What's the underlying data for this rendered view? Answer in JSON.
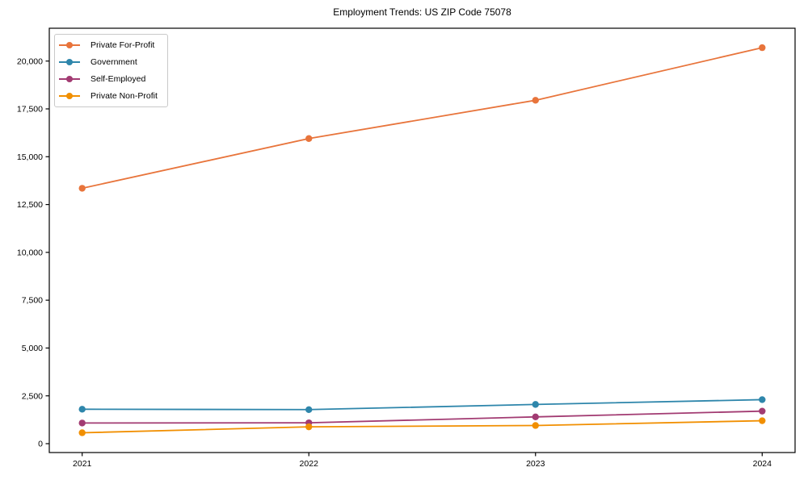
{
  "figure": {
    "title": "Employment Trends: US ZIP Code 75078"
  },
  "chart_data": {
    "type": "line",
    "title": "Employment Trends: US ZIP Code 75078",
    "xlabel": "",
    "ylabel": "",
    "grid": false,
    "legend_position": "upper left",
    "marker": "circle",
    "x_tick_labels": [
      "2021",
      "2022",
      "2023",
      "2024"
    ],
    "x": [
      2021,
      2022,
      2023,
      2024
    ],
    "y_ticks": [
      0,
      2500,
      5000,
      7500,
      10000,
      12500,
      15000,
      17500,
      20000
    ],
    "y_tick_labels": [
      "0",
      "2,500",
      "5,000",
      "7,500",
      "10,000",
      "12,500",
      "15,000",
      "17,500",
      "20,000"
    ],
    "ylim": [
      0,
      21700
    ],
    "series": [
      {
        "name": "Private For-Profit",
        "color": "#E8743B",
        "values": [
          13350,
          15950,
          17950,
          20700
        ]
      },
      {
        "name": "Government",
        "color": "#2E86AB",
        "values": [
          1800,
          1780,
          2050,
          2300
        ]
      },
      {
        "name": "Self-Employed",
        "color": "#A23B72",
        "values": [
          1080,
          1090,
          1400,
          1700
        ]
      },
      {
        "name": "Private Non-Profit",
        "color": "#F18F01",
        "values": [
          570,
          880,
          950,
          1200
        ]
      }
    ]
  }
}
